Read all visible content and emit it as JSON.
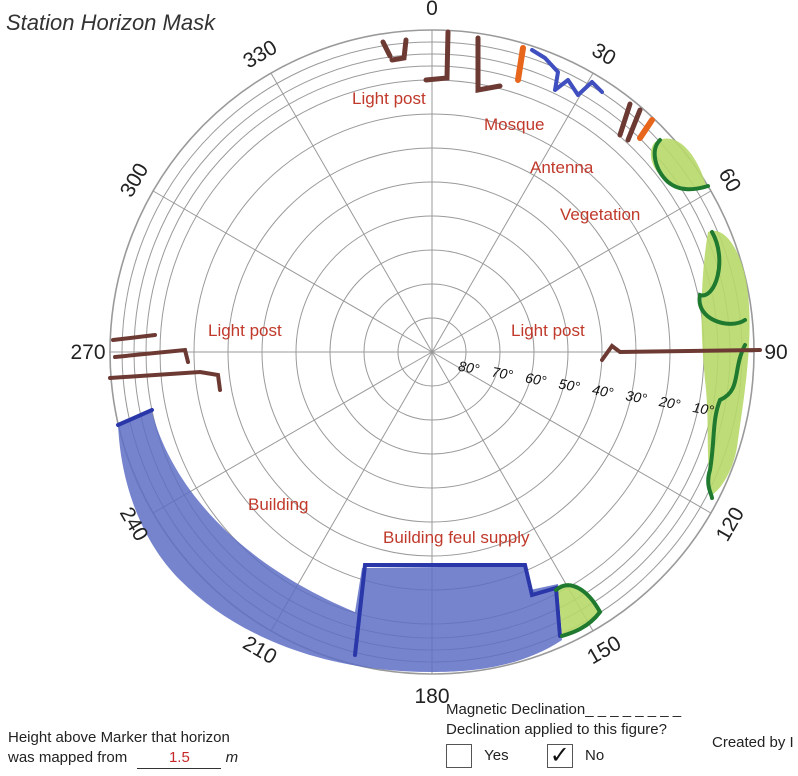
{
  "title": "Station Horizon Mask",
  "polar": {
    "azimuth_labels": [
      "0",
      "30",
      "60",
      "90",
      "120",
      "150",
      "180",
      "210",
      "240",
      "270",
      "300",
      "330"
    ],
    "elevation_labels": [
      "80°",
      "70°",
      "60°",
      "50°",
      "40°",
      "30°",
      "20°",
      "10°"
    ]
  },
  "obstructions": [
    {
      "label": "Light post",
      "color": "#6d3a33"
    },
    {
      "label": "Mosque",
      "color": "#3f4fbf"
    },
    {
      "label": "Antenna",
      "color": "#e8651c"
    },
    {
      "label": "Vegetation",
      "color": "#2e8b2e"
    },
    {
      "label": "Light post",
      "color": "#6d3a33"
    },
    {
      "label": "Light post",
      "color": "#6d3a33"
    },
    {
      "label": "Building",
      "color": "#3f4fbf"
    },
    {
      "label": "Building feul supply",
      "color": "#3f4fbf"
    }
  ],
  "form": {
    "height_line1": "Height above Marker that horizon",
    "height_line2": "was mapped from",
    "height_value": "1.5",
    "height_unit": "m",
    "mag_decl": "Magnetic Declination_ _ _ _ _ _ _ _",
    "decl_applied": "Declination applied to this figure?",
    "yes_label": "Yes",
    "no_label": "No",
    "no_checked": "✓",
    "created_by": "Created by I"
  },
  "colors": {
    "grid": "#9a9a9a",
    "label_red": "#c0392b",
    "building_fill": "#5e6fc6",
    "veg_fill": "#b7d96a",
    "veg_edge": "#1f7a2f",
    "post": "#6d3a33",
    "antenna": "#e8651c"
  }
}
